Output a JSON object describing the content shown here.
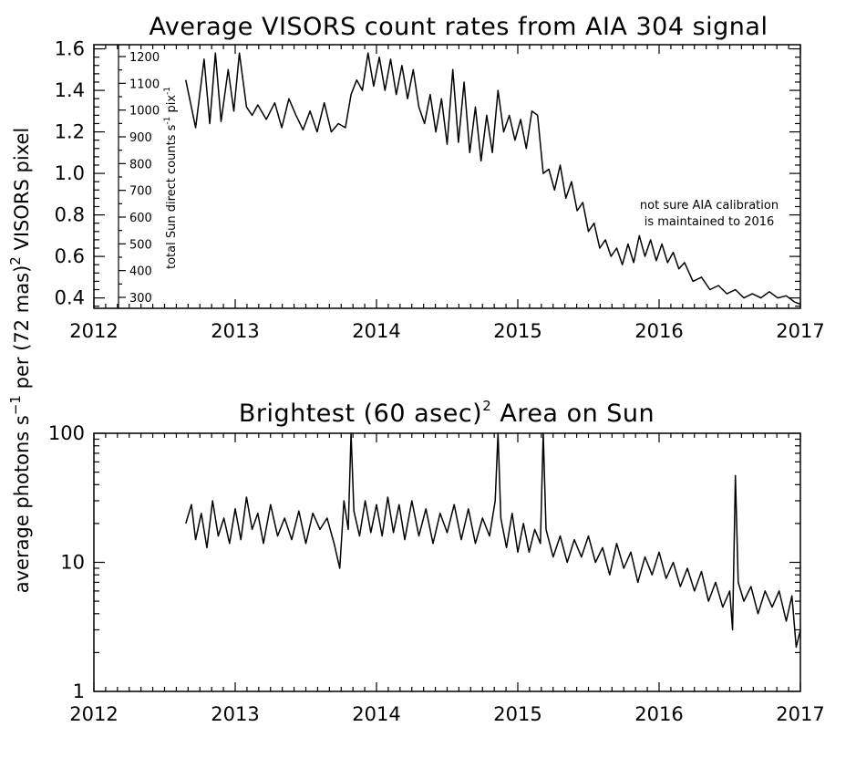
{
  "chart_data": [
    {
      "type": "line",
      "title": "Average VISORS count rates from AIA 304 signal",
      "xlim": [
        2012,
        2017
      ],
      "ylim": [
        0.35,
        1.62
      ],
      "x_ticks": [
        "2012",
        "2013",
        "2014",
        "2015",
        "2016",
        "2017"
      ],
      "y_ticks": [
        "0.4",
        "0.6",
        "0.8",
        "1.0",
        "1.2",
        "1.4",
        "1.6"
      ],
      "secondary_axis": {
        "ylabel_main": "total Sun direct counts s",
        "ylabel_sup1": "-1",
        "ylabel_mid": " pix",
        "ylabel_sup2": "-1",
        "ticks": [
          "300",
          "400",
          "500",
          "600",
          "700",
          "800",
          "900",
          "1000",
          "1100",
          "1200"
        ]
      },
      "annotation": [
        "not sure AIA calibration",
        "is maintained to 2016"
      ],
      "series": [
        {
          "values": [
            [
              2012.65,
              1.45
            ],
            [
              2012.72,
              1.22
            ],
            [
              2012.78,
              1.55
            ],
            [
              2012.82,
              1.24
            ],
            [
              2012.86,
              1.58
            ],
            [
              2012.9,
              1.25
            ],
            [
              2012.95,
              1.5
            ],
            [
              2012.99,
              1.3
            ],
            [
              2013.03,
              1.58
            ],
            [
              2013.08,
              1.32
            ],
            [
              2013.12,
              1.28
            ],
            [
              2013.16,
              1.33
            ],
            [
              2013.22,
              1.26
            ],
            [
              2013.28,
              1.34
            ],
            [
              2013.33,
              1.22
            ],
            [
              2013.38,
              1.36
            ],
            [
              2013.43,
              1.28
            ],
            [
              2013.48,
              1.21
            ],
            [
              2013.53,
              1.3
            ],
            [
              2013.58,
              1.2
            ],
            [
              2013.63,
              1.34
            ],
            [
              2013.68,
              1.2
            ],
            [
              2013.73,
              1.24
            ],
            [
              2013.78,
              1.22
            ],
            [
              2013.82,
              1.38
            ],
            [
              2013.86,
              1.45
            ],
            [
              2013.9,
              1.4
            ],
            [
              2013.94,
              1.58
            ],
            [
              2013.98,
              1.42
            ],
            [
              2014.02,
              1.56
            ],
            [
              2014.06,
              1.4
            ],
            [
              2014.1,
              1.55
            ],
            [
              2014.14,
              1.38
            ],
            [
              2014.18,
              1.52
            ],
            [
              2014.22,
              1.36
            ],
            [
              2014.26,
              1.5
            ],
            [
              2014.3,
              1.32
            ],
            [
              2014.34,
              1.24
            ],
            [
              2014.38,
              1.38
            ],
            [
              2014.42,
              1.2
            ],
            [
              2014.46,
              1.36
            ],
            [
              2014.5,
              1.14
            ],
            [
              2014.54,
              1.5
            ],
            [
              2014.58,
              1.15
            ],
            [
              2014.62,
              1.44
            ],
            [
              2014.66,
              1.1
            ],
            [
              2014.7,
              1.32
            ],
            [
              2014.74,
              1.06
            ],
            [
              2014.78,
              1.28
            ],
            [
              2014.82,
              1.1
            ],
            [
              2014.86,
              1.4
            ],
            [
              2014.9,
              1.2
            ],
            [
              2014.94,
              1.28
            ],
            [
              2014.98,
              1.16
            ],
            [
              2015.02,
              1.26
            ],
            [
              2015.06,
              1.12
            ],
            [
              2015.1,
              1.3
            ],
            [
              2015.14,
              1.28
            ],
            [
              2015.18,
              1.0
            ],
            [
              2015.22,
              1.02
            ],
            [
              2015.26,
              0.92
            ],
            [
              2015.3,
              1.04
            ],
            [
              2015.34,
              0.88
            ],
            [
              2015.38,
              0.96
            ],
            [
              2015.42,
              0.82
            ],
            [
              2015.46,
              0.86
            ],
            [
              2015.5,
              0.72
            ],
            [
              2015.54,
              0.76
            ],
            [
              2015.58,
              0.64
            ],
            [
              2015.62,
              0.68
            ],
            [
              2015.66,
              0.6
            ],
            [
              2015.7,
              0.64
            ],
            [
              2015.74,
              0.56
            ],
            [
              2015.78,
              0.66
            ],
            [
              2015.82,
              0.57
            ],
            [
              2015.86,
              0.7
            ],
            [
              2015.9,
              0.6
            ],
            [
              2015.94,
              0.68
            ],
            [
              2015.98,
              0.58
            ],
            [
              2016.02,
              0.66
            ],
            [
              2016.06,
              0.57
            ],
            [
              2016.1,
              0.62
            ],
            [
              2016.14,
              0.54
            ],
            [
              2016.18,
              0.57
            ],
            [
              2016.24,
              0.48
            ],
            [
              2016.3,
              0.5
            ],
            [
              2016.36,
              0.44
            ],
            [
              2016.42,
              0.46
            ],
            [
              2016.48,
              0.42
            ],
            [
              2016.54,
              0.44
            ],
            [
              2016.6,
              0.4
            ],
            [
              2016.66,
              0.42
            ],
            [
              2016.72,
              0.4
            ],
            [
              2016.78,
              0.43
            ],
            [
              2016.84,
              0.4
            ],
            [
              2016.9,
              0.41
            ],
            [
              2016.96,
              0.38
            ],
            [
              2017.0,
              0.37
            ]
          ]
        }
      ]
    },
    {
      "type": "line",
      "title_main": "Brightest (60 asec)",
      "title_sup": "2",
      "title_rest": " Area on Sun",
      "xlim": [
        2012,
        2017
      ],
      "ylim": [
        1,
        100
      ],
      "yscale": "log",
      "x_ticks": [
        "2012",
        "2013",
        "2014",
        "2015",
        "2016",
        "2017"
      ],
      "y_ticks": [
        "1",
        "10",
        "100"
      ],
      "series": [
        {
          "values": [
            [
              2012.65,
              20
            ],
            [
              2012.69,
              28
            ],
            [
              2012.72,
              15
            ],
            [
              2012.76,
              24
            ],
            [
              2012.8,
              13
            ],
            [
              2012.84,
              30
            ],
            [
              2012.88,
              16
            ],
            [
              2012.92,
              22
            ],
            [
              2012.96,
              14
            ],
            [
              2013.0,
              26
            ],
            [
              2013.04,
              15
            ],
            [
              2013.08,
              32
            ],
            [
              2013.12,
              18
            ],
            [
              2013.16,
              24
            ],
            [
              2013.2,
              14
            ],
            [
              2013.25,
              28
            ],
            [
              2013.3,
              16
            ],
            [
              2013.35,
              22
            ],
            [
              2013.4,
              15
            ],
            [
              2013.45,
              25
            ],
            [
              2013.5,
              14
            ],
            [
              2013.55,
              24
            ],
            [
              2013.6,
              18
            ],
            [
              2013.65,
              22
            ],
            [
              2013.7,
              14
            ],
            [
              2013.74,
              9
            ],
            [
              2013.77,
              30
            ],
            [
              2013.8,
              18
            ],
            [
              2013.82,
              100
            ],
            [
              2013.84,
              25
            ],
            [
              2013.88,
              16
            ],
            [
              2013.92,
              30
            ],
            [
              2013.96,
              17
            ],
            [
              2014.0,
              28
            ],
            [
              2014.04,
              16
            ],
            [
              2014.08,
              32
            ],
            [
              2014.12,
              17
            ],
            [
              2014.16,
              28
            ],
            [
              2014.2,
              15
            ],
            [
              2014.25,
              30
            ],
            [
              2014.3,
              16
            ],
            [
              2014.35,
              26
            ],
            [
              2014.4,
              14
            ],
            [
              2014.45,
              24
            ],
            [
              2014.5,
              17
            ],
            [
              2014.55,
              28
            ],
            [
              2014.6,
              15
            ],
            [
              2014.65,
              26
            ],
            [
              2014.7,
              14
            ],
            [
              2014.75,
              22
            ],
            [
              2014.8,
              16
            ],
            [
              2014.84,
              30
            ],
            [
              2014.86,
              100
            ],
            [
              2014.88,
              22
            ],
            [
              2014.92,
              13
            ],
            [
              2014.96,
              24
            ],
            [
              2015.0,
              12
            ],
            [
              2015.04,
              20
            ],
            [
              2015.08,
              12
            ],
            [
              2015.12,
              18
            ],
            [
              2015.16,
              14
            ],
            [
              2015.18,
              100
            ],
            [
              2015.2,
              18
            ],
            [
              2015.25,
              11
            ],
            [
              2015.3,
              16
            ],
            [
              2015.35,
              10
            ],
            [
              2015.4,
              15
            ],
            [
              2015.45,
              11
            ],
            [
              2015.5,
              16
            ],
            [
              2015.55,
              10
            ],
            [
              2015.6,
              13
            ],
            [
              2015.65,
              8
            ],
            [
              2015.7,
              14
            ],
            [
              2015.75,
              9
            ],
            [
              2015.8,
              12
            ],
            [
              2015.85,
              7
            ],
            [
              2015.9,
              11
            ],
            [
              2015.95,
              8
            ],
            [
              2016.0,
              12
            ],
            [
              2016.05,
              7.5
            ],
            [
              2016.1,
              10
            ],
            [
              2016.15,
              6.5
            ],
            [
              2016.2,
              9
            ],
            [
              2016.25,
              6
            ],
            [
              2016.3,
              8.5
            ],
            [
              2016.35,
              5
            ],
            [
              2016.4,
              7
            ],
            [
              2016.45,
              4.5
            ],
            [
              2016.5,
              6
            ],
            [
              2016.52,
              3
            ],
            [
              2016.54,
              47
            ],
            [
              2016.56,
              7
            ],
            [
              2016.6,
              5
            ],
            [
              2016.65,
              6.5
            ],
            [
              2016.7,
              4
            ],
            [
              2016.75,
              6
            ],
            [
              2016.8,
              4.5
            ],
            [
              2016.85,
              6
            ],
            [
              2016.9,
              3.5
            ],
            [
              2016.94,
              5.5
            ],
            [
              2016.97,
              2.2
            ],
            [
              2017.0,
              3
            ]
          ]
        }
      ]
    }
  ],
  "shared_ylabel": {
    "part1": "average photons s",
    "sup1": "−1",
    "part2": " per (72 mas)",
    "sup2": "2",
    "part3": " VISORS pixel"
  }
}
